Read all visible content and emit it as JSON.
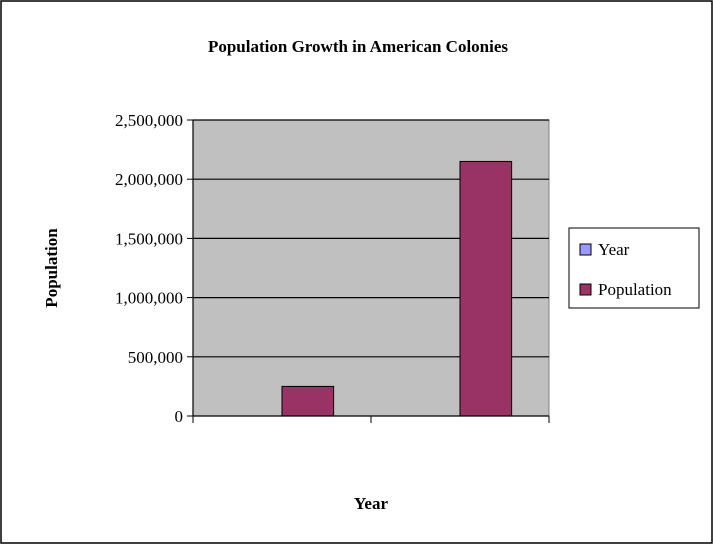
{
  "chart_data": {
    "type": "bar",
    "title": "Population Growth in American Colonies",
    "xlabel": "Year",
    "ylabel": "Population",
    "categories": [
      "",
      ""
    ],
    "series": [
      {
        "name": "Year",
        "values": [
          0,
          0
        ],
        "color": "#9999ff"
      },
      {
        "name": "Population",
        "values": [
          250000,
          2150000
        ],
        "color": "#993366"
      }
    ],
    "ylim": [
      0,
      2500000
    ],
    "yticks": [
      0,
      500000,
      1000000,
      1500000,
      2000000,
      2500000
    ],
    "ytick_labels": [
      "0",
      "500,000",
      "1,000,000",
      "1,500,000",
      "2,000,000",
      "2,500,000"
    ],
    "grid": true,
    "legend_position": "right",
    "plot_background": "#c0c0c0"
  }
}
